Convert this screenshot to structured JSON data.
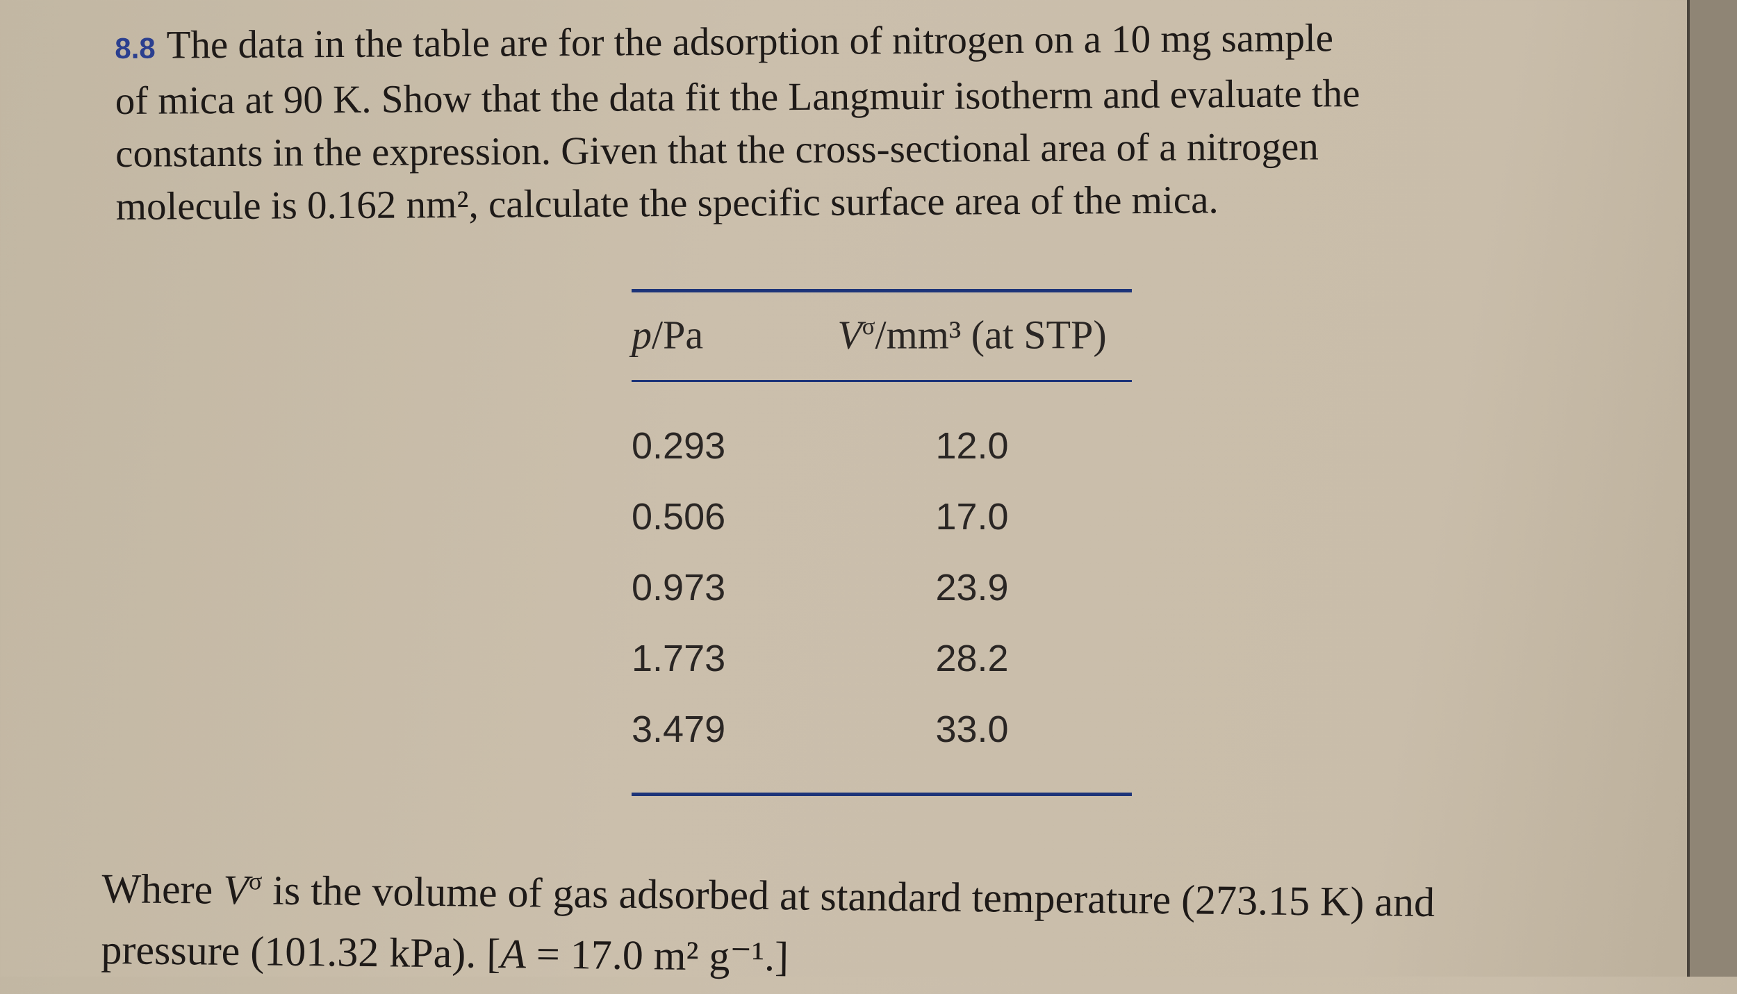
{
  "problem": {
    "number": "8.8",
    "lines": [
      "The data in the table are for the adsorption of nitrogen on a 10 mg sample",
      "of mica at 90 K. Show that the data fit the Langmuir isotherm and evaluate the",
      "constants in the expression. Given that the cross-sectional area of a nitrogen",
      "molecule is 0.162 nm², calculate the specific surface area of the mica."
    ]
  },
  "table": {
    "columns": [
      {
        "symbol": "p",
        "unit": "/Pa"
      },
      {
        "symbol": "V",
        "superscript": "σ",
        "unit": "/mm³ (at STP)"
      }
    ],
    "rows": [
      [
        "0.293",
        "12.0"
      ],
      [
        "0.506",
        "17.0"
      ],
      [
        "0.973",
        "23.9"
      ],
      [
        "1.773",
        "28.2"
      ],
      [
        "3.479",
        "33.0"
      ]
    ]
  },
  "note": {
    "lines": [
      {
        "before": "Where ",
        "symbol": "V",
        "superscript": "σ",
        "after": " is the volume of gas adsorbed at standard temperature (273.15 K) and"
      },
      {
        "before": "pressure (101.32 kPa). [",
        "symbol": "A",
        "after": " = 17.0 m² g⁻¹.]"
      }
    ]
  }
}
